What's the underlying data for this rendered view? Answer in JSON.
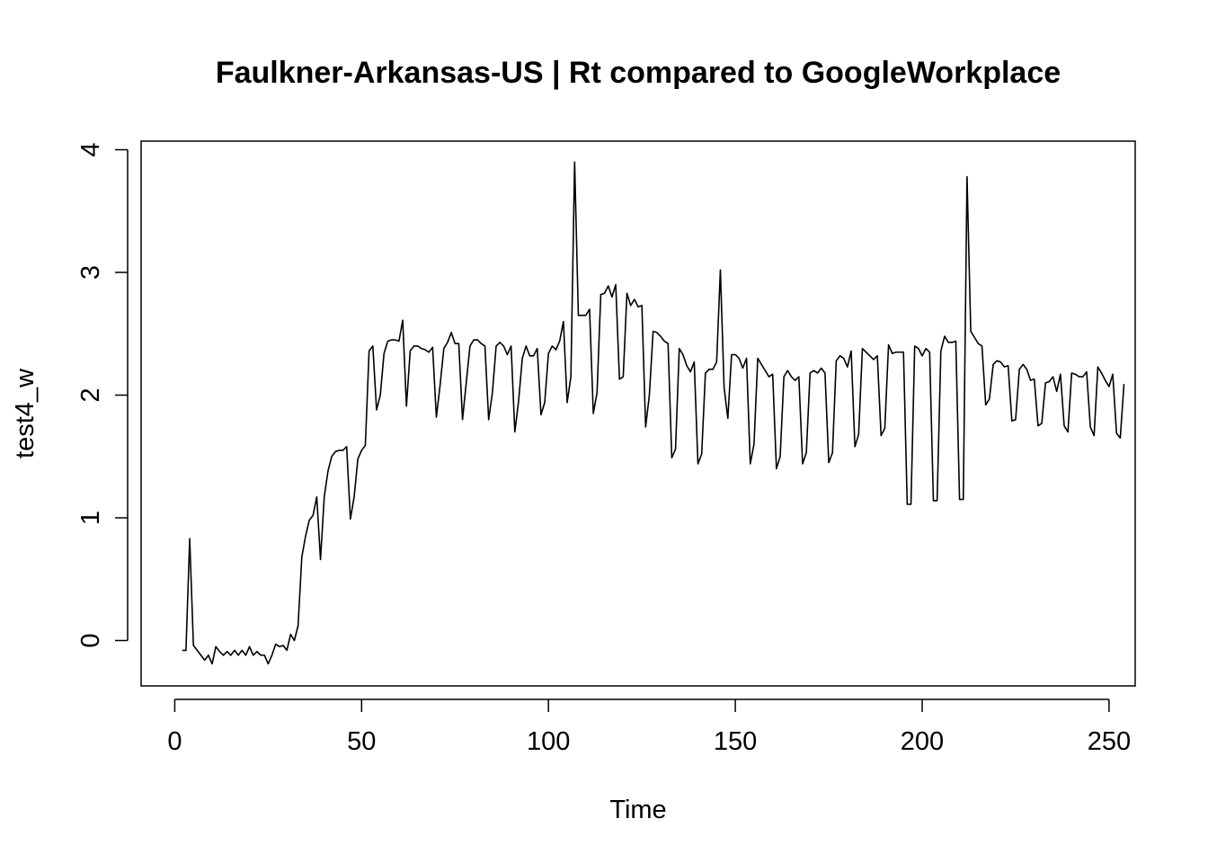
{
  "chart_data": {
    "type": "line",
    "title": "Faulkner-Arkansas-US | Rt compared to GoogleWorkplace",
    "xlabel": "Time",
    "ylabel": "test4_w",
    "xlim": [
      -9,
      257
    ],
    "ylim": [
      -0.37,
      4.07
    ],
    "x_ticks": [
      0,
      50,
      100,
      150,
      200,
      250
    ],
    "y_ticks": [
      0,
      1,
      2,
      3,
      4
    ],
    "grid": false,
    "legend": "none",
    "line_color": "#000000",
    "x_start": 2,
    "series": [
      {
        "values": [
          -0.08,
          -0.08,
          0.83,
          -0.04,
          -0.08,
          -0.12,
          -0.16,
          -0.12,
          -0.19,
          -0.05,
          -0.09,
          -0.12,
          -0.09,
          -0.12,
          -0.08,
          -0.12,
          -0.08,
          -0.12,
          -0.05,
          -0.12,
          -0.09,
          -0.12,
          -0.12,
          -0.19,
          -0.12,
          -0.03,
          -0.05,
          -0.04,
          -0.08,
          0.05,
          0.0,
          0.12,
          0.68,
          0.85,
          0.98,
          1.02,
          1.17,
          0.66,
          1.17,
          1.38,
          1.5,
          1.54,
          1.55,
          1.55,
          1.58,
          0.99,
          1.17,
          1.48,
          1.55,
          1.59,
          2.36,
          2.4,
          1.88,
          2.0,
          2.34,
          2.44,
          2.45,
          2.45,
          2.44,
          2.61,
          1.91,
          2.36,
          2.4,
          2.4,
          2.38,
          2.37,
          2.35,
          2.39,
          1.82,
          2.08,
          2.38,
          2.43,
          2.51,
          2.42,
          2.42,
          1.8,
          2.1,
          2.4,
          2.45,
          2.45,
          2.42,
          2.4,
          1.8,
          2.02,
          2.4,
          2.43,
          2.4,
          2.33,
          2.4,
          1.7,
          1.95,
          2.3,
          2.4,
          2.32,
          2.32,
          2.38,
          1.84,
          1.94,
          2.34,
          2.4,
          2.37,
          2.44,
          2.6,
          1.94,
          2.15,
          3.9,
          2.65,
          2.65,
          2.65,
          2.7,
          1.85,
          2.02,
          2.82,
          2.83,
          2.89,
          2.8,
          2.9,
          2.13,
          2.15,
          2.83,
          2.73,
          2.78,
          2.72,
          2.73,
          1.74,
          2.0,
          2.52,
          2.51,
          2.48,
          2.44,
          2.42,
          1.49,
          1.56,
          2.38,
          2.33,
          2.24,
          2.19,
          2.27,
          1.44,
          1.52,
          2.18,
          2.21,
          2.21,
          2.27,
          3.02,
          2.06,
          1.81,
          2.33,
          2.33,
          2.3,
          2.22,
          2.3,
          1.44,
          1.6,
          2.3,
          2.25,
          2.2,
          2.15,
          2.17,
          1.4,
          1.5,
          2.15,
          2.2,
          2.15,
          2.12,
          2.15,
          1.44,
          1.53,
          2.18,
          2.2,
          2.18,
          2.22,
          2.18,
          1.45,
          1.53,
          2.28,
          2.32,
          2.3,
          2.23,
          2.36,
          1.58,
          1.68,
          2.38,
          2.35,
          2.32,
          2.29,
          2.32,
          1.67,
          1.73,
          2.41,
          2.34,
          2.35,
          2.35,
          2.35,
          1.11,
          1.11,
          2.4,
          2.38,
          2.32,
          2.38,
          2.35,
          1.14,
          1.14,
          2.36,
          2.48,
          2.43,
          2.43,
          2.44,
          1.15,
          1.15,
          3.78,
          2.52,
          2.47,
          2.42,
          2.4,
          1.92,
          1.97,
          2.25,
          2.28,
          2.27,
          2.23,
          2.24,
          1.79,
          1.8,
          2.21,
          2.25,
          2.21,
          2.12,
          2.13,
          1.75,
          1.77,
          2.1,
          2.11,
          2.15,
          2.03,
          2.17,
          1.75,
          1.7,
          2.18,
          2.17,
          2.15,
          2.15,
          2.19,
          1.74,
          1.67,
          2.23,
          2.18,
          2.12,
          2.07,
          2.17,
          1.69,
          1.65,
          2.09
        ]
      }
    ]
  }
}
